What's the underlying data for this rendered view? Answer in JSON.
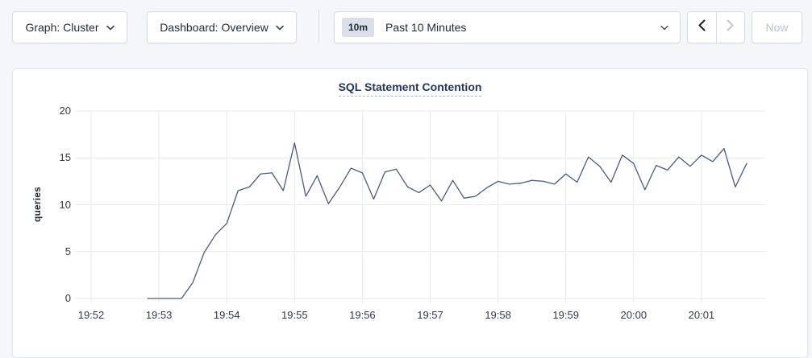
{
  "toolbar": {
    "graph_dropdown": {
      "label": "Graph: Cluster"
    },
    "dashboard_dropdown": {
      "label": "Dashboard: Overview"
    },
    "time_selector": {
      "badge": "10m",
      "label": "Past 10 Minutes"
    },
    "nav": {
      "now_label": "Now"
    }
  },
  "colors": {
    "line": "#4d597d",
    "grid": "#e8eaee",
    "title": "#23365e",
    "disabled": "#c3c9d6",
    "enabled_arrow": "#242a35"
  },
  "chart_data": {
    "type": "line",
    "title": "SQL Statement Contention",
    "ylabel": "queries",
    "ylim": [
      0,
      20
    ],
    "yticks": [
      0,
      5,
      10,
      15,
      20
    ],
    "xticks": [
      "19:52",
      "19:53",
      "19:54",
      "19:55",
      "19:56",
      "19:57",
      "19:58",
      "19:59",
      "20:00",
      "20:01"
    ],
    "x_minute_zero": "19:52:00",
    "x_range": [
      "19:51:46",
      "20:01:57"
    ],
    "grid": true,
    "legend_position": "none",
    "series": [
      {
        "name": "queries",
        "color": "#4d597d",
        "points": [
          [
            "19:52:50",
            0
          ],
          [
            "19:53:00",
            0
          ],
          [
            "19:53:10",
            0
          ],
          [
            "19:53:20",
            0
          ],
          [
            "19:53:30",
            1.7
          ],
          [
            "19:53:40",
            4.9
          ],
          [
            "19:53:50",
            6.8
          ],
          [
            "19:54:00",
            8.0
          ],
          [
            "19:54:10",
            11.5
          ],
          [
            "19:54:20",
            11.9
          ],
          [
            "19:54:30",
            13.3
          ],
          [
            "19:54:40",
            13.4
          ],
          [
            "19:54:50",
            11.5
          ],
          [
            "19:55:00",
            16.6
          ],
          [
            "19:55:10",
            10.9
          ],
          [
            "19:55:20",
            13.1
          ],
          [
            "19:55:30",
            10.1
          ],
          [
            "19:55:40",
            11.9
          ],
          [
            "19:55:50",
            13.9
          ],
          [
            "19:56:00",
            13.4
          ],
          [
            "19:56:10",
            10.6
          ],
          [
            "19:56:20",
            13.5
          ],
          [
            "19:56:30",
            13.8
          ],
          [
            "19:56:40",
            11.9
          ],
          [
            "19:56:50",
            11.3
          ],
          [
            "19:57:00",
            12.1
          ],
          [
            "19:57:10",
            10.4
          ],
          [
            "19:57:20",
            12.6
          ],
          [
            "19:57:30",
            10.7
          ],
          [
            "19:57:40",
            10.9
          ],
          [
            "19:57:50",
            11.8
          ],
          [
            "19:58:00",
            12.5
          ],
          [
            "19:58:10",
            12.2
          ],
          [
            "19:58:20",
            12.3
          ],
          [
            "19:58:30",
            12.6
          ],
          [
            "19:58:40",
            12.5
          ],
          [
            "19:58:50",
            12.2
          ],
          [
            "19:59:00",
            13.3
          ],
          [
            "19:59:10",
            12.4
          ],
          [
            "19:59:20",
            15.1
          ],
          [
            "19:59:30",
            14.1
          ],
          [
            "19:59:40",
            12.4
          ],
          [
            "19:59:50",
            15.3
          ],
          [
            "20:00:00",
            14.4
          ],
          [
            "20:00:10",
            11.6
          ],
          [
            "20:00:20",
            14.2
          ],
          [
            "20:00:30",
            13.7
          ],
          [
            "20:00:40",
            15.1
          ],
          [
            "20:00:50",
            14.1
          ],
          [
            "20:01:00",
            15.3
          ],
          [
            "20:01:10",
            14.6
          ],
          [
            "20:01:20",
            16.0
          ],
          [
            "20:01:30",
            11.9
          ],
          [
            "20:01:40",
            14.4
          ]
        ]
      }
    ]
  }
}
